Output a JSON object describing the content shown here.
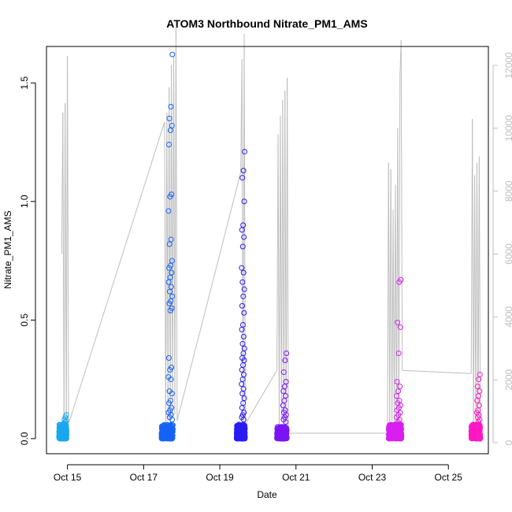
{
  "chart_data": {
    "type": "scatter",
    "title": "ATOM3 Northbound Nitrate_PM1_AMS",
    "xlabel": "Date",
    "ylabel": "Nitrate_PM1_AMS",
    "x_ticks": [
      "Oct 15",
      "Oct 17",
      "Oct 19",
      "Oct 21",
      "Oct 23",
      "Oct 25"
    ],
    "y_ticks": [
      "0.0",
      "0.5",
      "1.0",
      "1.5"
    ],
    "y2_ticks": [
      "0",
      "2000",
      "4000",
      "6000",
      "8000",
      "10000",
      "12000"
    ],
    "x_range_days_oct": [
      14.45,
      26.05
    ],
    "y_range": [
      -0.0636,
      1.6536
    ],
    "y2_range": [
      -350,
      12600
    ],
    "grid": false,
    "line_series": {
      "name": "",
      "color": "#bebebe",
      "axis": "right",
      "points": [
        {
          "x": "Oct 14.85",
          "y": 6000
        },
        {
          "x": "Oct 14.88",
          "y": 10500
        },
        {
          "x": "Oct 14.91",
          "y": 700
        },
        {
          "x": "Oct 14.94",
          "y": 10800
        },
        {
          "x": "Oct 14.97",
          "y": 500
        },
        {
          "x": "Oct 15.00",
          "y": 12300
        },
        {
          "x": "Oct 15.03",
          "y": 600
        },
        {
          "x": "Oct 17.55",
          "y": 10200
        },
        {
          "x": "Oct 17.58",
          "y": 500
        },
        {
          "x": "Oct 17.61",
          "y": 10500
        },
        {
          "x": "Oct 17.64",
          "y": 700
        },
        {
          "x": "Oct 17.67",
          "y": 11300
        },
        {
          "x": "Oct 17.70",
          "y": 600
        },
        {
          "x": "Oct 17.73",
          "y": 12000
        },
        {
          "x": "Oct 17.76",
          "y": 800
        },
        {
          "x": "Oct 17.79",
          "y": 12300
        },
        {
          "x": "Oct 17.82",
          "y": 900
        },
        {
          "x": "Oct 17.85",
          "y": 13400
        },
        {
          "x": "Oct 17.88",
          "y": 700
        },
        {
          "x": "Oct 19.55",
          "y": 8600
        },
        {
          "x": "Oct 19.58",
          "y": 12200
        },
        {
          "x": "Oct 19.61",
          "y": 500
        },
        {
          "x": "Oct 19.64",
          "y": 13000
        },
        {
          "x": "Oct 19.67",
          "y": 600
        },
        {
          "x": "Oct 20.50",
          "y": 2300
        },
        {
          "x": "Oct 20.53",
          "y": 9800
        },
        {
          "x": "Oct 20.56",
          "y": 500
        },
        {
          "x": "Oct 20.59",
          "y": 10400
        },
        {
          "x": "Oct 20.62",
          "y": 700
        },
        {
          "x": "Oct 20.65",
          "y": 10900
        },
        {
          "x": "Oct 20.68",
          "y": 600
        },
        {
          "x": "Oct 20.71",
          "y": 11200
        },
        {
          "x": "Oct 20.74",
          "y": 500
        },
        {
          "x": "Oct 20.77",
          "y": 11600
        },
        {
          "x": "Oct 20.80",
          "y": 300
        },
        {
          "x": "Oct 23.40",
          "y": 300
        },
        {
          "x": "Oct 23.43",
          "y": 8900
        },
        {
          "x": "Oct 23.46",
          "y": 500
        },
        {
          "x": "Oct 23.49",
          "y": 8700
        },
        {
          "x": "Oct 23.52",
          "y": 600
        },
        {
          "x": "Oct 23.55",
          "y": 7400
        },
        {
          "x": "Oct 23.58",
          "y": 500
        },
        {
          "x": "Oct 23.61",
          "y": 8200
        },
        {
          "x": "Oct 23.64",
          "y": 600
        },
        {
          "x": "Oct 23.67",
          "y": 10000
        },
        {
          "x": "Oct 23.70",
          "y": 700
        },
        {
          "x": "Oct 23.73",
          "y": 11700
        },
        {
          "x": "Oct 23.76",
          "y": 12800
        },
        {
          "x": "Oct 23.79",
          "y": 2300
        },
        {
          "x": "Oct 25.60",
          "y": 2200
        },
        {
          "x": "Oct 25.63",
          "y": 10300
        },
        {
          "x": "Oct 25.66",
          "y": 400
        },
        {
          "x": "Oct 25.69",
          "y": 8500
        },
        {
          "x": "Oct 25.72",
          "y": 500
        },
        {
          "x": "Oct 25.75",
          "y": 8900
        },
        {
          "x": "Oct 25.78",
          "y": 400
        },
        {
          "x": "Oct 25.81",
          "y": 9100
        },
        {
          "x": "Oct 25.84",
          "y": 500
        }
      ]
    },
    "series": [
      {
        "color": "#1aa7f0",
        "x_center": "Oct 14.88",
        "x_spread_days": 0.2,
        "cluster_range": [
          0.0,
          0.06
        ],
        "y": [
          0.1,
          0.09,
          0.08,
          0.075,
          0.07,
          0.065
        ]
      },
      {
        "color": "#1762f5",
        "x_center": "Oct 17.62",
        "x_spread_days": 0.3,
        "cluster_range": [
          0.0,
          0.06
        ],
        "y": [
          1.62,
          1.4,
          1.35,
          1.32,
          1.3,
          1.24,
          1.03,
          1.02,
          0.96,
          0.84,
          0.82,
          0.75,
          0.73,
          0.72,
          0.7,
          0.68,
          0.66,
          0.64,
          0.62,
          0.6,
          0.58,
          0.57,
          0.55,
          0.54,
          0.34,
          0.3,
          0.29,
          0.26,
          0.25,
          0.2,
          0.19,
          0.16,
          0.15,
          0.13,
          0.12,
          0.11,
          0.1,
          0.09,
          0.08
        ]
      },
      {
        "color": "#2a1cf2",
        "x_center": "Oct 19.55",
        "x_spread_days": 0.22,
        "cluster_range": [
          0.0,
          0.06
        ],
        "y": [
          1.21,
          1.13,
          1.1,
          1.0,
          0.9,
          0.88,
          0.85,
          0.81,
          0.72,
          0.7,
          0.66,
          0.63,
          0.6,
          0.56,
          0.53,
          0.48,
          0.46,
          0.43,
          0.4,
          0.38,
          0.36,
          0.34,
          0.33,
          0.31,
          0.29,
          0.27,
          0.25,
          0.23,
          0.21,
          0.19,
          0.17,
          0.15,
          0.13,
          0.11,
          0.1,
          0.09,
          0.08
        ]
      },
      {
        "color": "#7a15f5",
        "x_center": "Oct 20.63",
        "x_spread_days": 0.26,
        "cluster_range": [
          0.0,
          0.05
        ],
        "y": [
          0.36,
          0.33,
          0.28,
          0.24,
          0.22,
          0.2,
          0.18,
          0.16,
          0.14,
          0.12,
          0.11,
          0.1,
          0.09,
          0.08,
          0.07
        ]
      },
      {
        "color": "#d81ff0",
        "x_center": "Oct 23.6",
        "x_spread_days": 0.34,
        "cluster_range": [
          0.0,
          0.06
        ],
        "y": [
          0.67,
          0.66,
          0.49,
          0.47,
          0.36,
          0.24,
          0.22,
          0.2,
          0.18,
          0.16,
          0.15,
          0.14,
          0.13,
          0.12,
          0.11,
          0.1,
          0.09,
          0.08,
          0.07
        ]
      },
      {
        "color": "#ff18c4",
        "x_center": "Oct 25.72",
        "x_spread_days": 0.24,
        "cluster_range": [
          0.0,
          0.06
        ],
        "y": [
          0.27,
          0.25,
          0.22,
          0.2,
          0.18,
          0.16,
          0.14,
          0.12,
          0.11,
          0.1,
          0.09,
          0.08,
          0.07
        ]
      }
    ]
  }
}
